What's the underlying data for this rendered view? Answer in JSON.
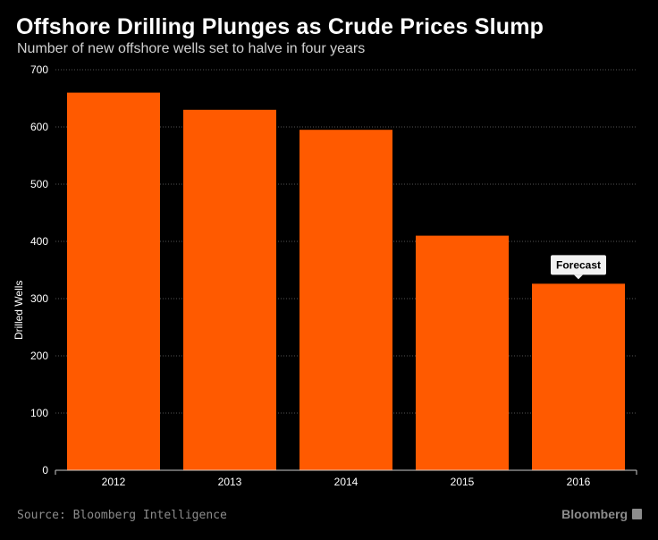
{
  "header": {
    "title": "Offshore Drilling Plunges as Crude Prices Slump",
    "subtitle": "Number of new offshore wells set to halve in four years"
  },
  "footer": {
    "source": "Source: Bloomberg Intelligence",
    "brand": "Bloomberg"
  },
  "colors": {
    "bar": "#ff5a00",
    "background": "#000000",
    "grid": "#555555",
    "text": "#ffffff",
    "muted": "#8c8c8c"
  },
  "chart_data": {
    "type": "bar",
    "title": "Offshore Drilling Plunges as Crude Prices Slump",
    "subtitle": "Number of new offshore wells set to halve in four years",
    "categories": [
      "2012",
      "2013",
      "2014",
      "2015",
      "2016"
    ],
    "values": [
      660,
      630,
      595,
      410,
      326
    ],
    "xlabel": "",
    "ylabel": "Drilled Wells",
    "ylim": [
      0,
      700
    ],
    "yticks": [
      0,
      100,
      200,
      300,
      400,
      500,
      600,
      700
    ],
    "grid": true,
    "annotations": [
      {
        "category": "2016",
        "text": "Forecast"
      }
    ]
  }
}
